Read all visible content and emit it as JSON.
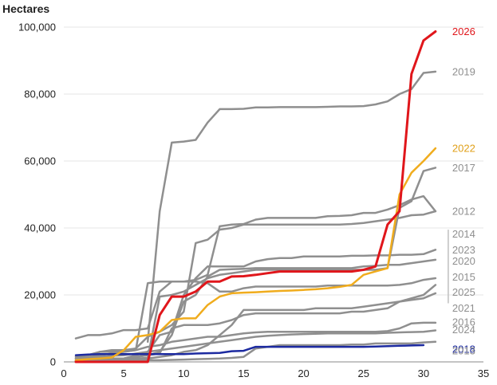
{
  "chart_data": {
    "type": "line",
    "ylabel": "Hectares",
    "xlabel": "",
    "xlim": [
      0,
      35
    ],
    "ylim": [
      0,
      100000
    ],
    "xticks": [
      "0",
      "5",
      "10",
      "15",
      "20",
      "25",
      "30",
      "35"
    ],
    "yticks": [
      "0",
      "20,000",
      "40,000",
      "60,000",
      "80,000",
      "100,000"
    ],
    "grid": "horizontal",
    "colors": {
      "highlight": "#e0161b",
      "accent": "#f0ac1d",
      "reference": "#1c2aa0",
      "muted": "#8f8f8f"
    },
    "series": [
      {
        "name": "2019",
        "color": "#8f8f8f",
        "x": [
          7,
          8,
          9,
          10,
          11,
          12,
          13,
          14,
          15,
          16,
          17,
          18,
          19,
          20,
          21,
          22,
          23,
          24,
          25,
          26,
          27,
          28,
          29,
          30,
          31
        ],
        "y": [
          6000,
          45000,
          65500,
          65800,
          66300,
          71500,
          75500,
          75500,
          75600,
          76000,
          76000,
          76100,
          76100,
          76100,
          76100,
          76200,
          76300,
          76300,
          76400,
          76900,
          77800,
          80000,
          81500,
          86300,
          86700
        ]
      },
      {
        "name": "2022",
        "color": "#f0ac1d",
        "x": [
          1,
          2,
          3,
          4,
          5,
          6,
          7,
          8,
          9,
          10,
          11,
          12,
          13,
          14,
          15,
          16,
          17,
          18,
          19,
          20,
          21,
          22,
          23,
          24,
          25,
          26,
          27,
          28,
          29,
          30,
          31
        ],
        "y": [
          500,
          800,
          1000,
          1300,
          3500,
          7500,
          8000,
          9000,
          12500,
          13000,
          13000,
          17000,
          19500,
          20500,
          20700,
          20800,
          21000,
          21200,
          21300,
          21500,
          21700,
          22000,
          22400,
          23000,
          26000,
          27000,
          28000,
          50000,
          56500,
          60000,
          63800
        ]
      },
      {
        "name": "2017",
        "color": "#8f8f8f",
        "x": [
          1,
          2,
          3,
          4,
          5,
          6,
          7,
          8,
          9,
          10,
          11,
          12,
          13,
          14,
          15,
          16,
          17,
          18,
          19,
          20,
          21,
          22,
          23,
          24,
          25,
          26,
          27,
          28,
          29,
          30,
          31
        ],
        "y": [
          1000,
          1000,
          1000,
          1000,
          1000,
          1000,
          1200,
          19500,
          20000,
          21000,
          23000,
          25000,
          26000,
          26500,
          27000,
          27500,
          27500,
          27500,
          27500,
          27500,
          27500,
          27500,
          27500,
          27500,
          27500,
          27500,
          28000,
          46000,
          48000,
          57000,
          58000
        ]
      },
      {
        "name": "2012",
        "color": "#8f8f8f",
        "x": [
          1,
          2,
          3,
          4,
          5,
          6,
          7,
          8,
          9,
          10,
          11,
          12,
          13,
          14,
          15,
          16,
          17,
          18,
          19,
          20,
          21,
          22,
          23,
          24,
          25,
          26,
          27,
          28,
          29,
          30,
          31
        ],
        "y": [
          7000,
          8000,
          8000,
          8500,
          9500,
          9500,
          10000,
          21000,
          24000,
          24000,
          24500,
          26000,
          40500,
          41000,
          41200,
          42500,
          43000,
          43000,
          43000,
          43000,
          43000,
          43500,
          43600,
          43800,
          44500,
          44500,
          45500,
          46800,
          48500,
          49500,
          45000
        ]
      },
      {
        "name": "2014",
        "color": "#8f8f8f",
        "x": [
          1,
          2,
          3,
          4,
          5,
          6,
          7,
          8,
          9,
          10,
          11,
          12,
          13,
          14,
          15,
          16,
          17,
          18,
          19,
          20,
          21,
          22,
          23,
          24,
          25,
          26,
          27,
          28,
          29,
          30,
          31
        ],
        "y": [
          1500,
          2000,
          3000,
          3500,
          3500,
          4000,
          7500,
          9000,
          11000,
          15000,
          35500,
          36500,
          39500,
          40000,
          41000,
          41000,
          41000,
          41000,
          41000,
          41000,
          41000,
          41000,
          41000,
          41200,
          41500,
          42000,
          42500,
          43000,
          43800,
          44000,
          45000
        ]
      },
      {
        "name": "2023",
        "color": "#8f8f8f",
        "x": [
          1,
          2,
          3,
          4,
          5,
          6,
          7,
          8,
          9,
          10,
          11,
          12,
          13,
          14,
          15,
          16,
          17,
          18,
          19,
          20,
          21,
          22,
          23,
          24,
          25,
          26,
          27,
          28,
          29,
          30,
          31
        ],
        "y": [
          300,
          500,
          800,
          1000,
          1000,
          2000,
          3000,
          8000,
          9000,
          20000,
          25000,
          28500,
          28500,
          28500,
          28500,
          30000,
          30700,
          31000,
          31000,
          31500,
          31500,
          31500,
          31500,
          31700,
          31700,
          31800,
          31800,
          32000,
          32000,
          32200,
          33500
        ]
      },
      {
        "name": "2020",
        "color": "#8f8f8f",
        "x": [
          1,
          2,
          3,
          4,
          5,
          6,
          7,
          8,
          9,
          10,
          11,
          12,
          13,
          14,
          15,
          16,
          17,
          18,
          19,
          20,
          21,
          22,
          23,
          24,
          25,
          26,
          27,
          28,
          29,
          30,
          31
        ],
        "y": [
          300,
          500,
          800,
          1000,
          1000,
          1500,
          2000,
          3000,
          8000,
          18000,
          20000,
          25500,
          27500,
          27700,
          27800,
          28000,
          28000,
          28000,
          28000,
          28000,
          28000,
          28000,
          28000,
          28000,
          28500,
          28700,
          29000,
          29000,
          29500,
          30000,
          30500
        ]
      },
      {
        "name": "2015",
        "color": "#8f8f8f",
        "x": [
          1,
          2,
          3,
          4,
          5,
          6,
          7,
          8,
          9,
          10,
          11,
          12,
          13,
          14,
          15,
          16,
          17,
          18,
          19,
          20,
          21,
          22,
          23,
          24,
          25,
          26,
          27,
          28,
          29,
          30,
          31
        ],
        "y": [
          1500,
          2000,
          3000,
          3000,
          3000,
          3500,
          23500,
          24000,
          24000,
          24000,
          24000,
          23500,
          21000,
          21000,
          22000,
          22500,
          22500,
          22500,
          22500,
          22500,
          22500,
          22800,
          22800,
          22800,
          22800,
          22800,
          22800,
          23000,
          23500,
          24500,
          25000
        ]
      },
      {
        "name": "2025",
        "color": "#8f8f8f",
        "x": [
          1,
          2,
          3,
          4,
          5,
          6,
          7,
          8,
          9,
          10,
          11,
          12,
          13,
          14,
          15,
          16,
          17,
          18,
          19,
          20,
          21,
          22,
          23,
          24,
          25,
          26,
          27,
          28,
          29,
          30,
          31
        ],
        "y": [
          1000,
          1000,
          1000,
          1000,
          1000,
          1500,
          2000,
          2500,
          10000,
          11000,
          11000,
          11000,
          11500,
          12500,
          14000,
          14500,
          14500,
          14500,
          14500,
          14500,
          14500,
          14500,
          14500,
          15000,
          15000,
          15500,
          16000,
          18000,
          19000,
          20000,
          23000
        ]
      },
      {
        "name": "2021",
        "color": "#8f8f8f",
        "x": [
          1,
          2,
          3,
          4,
          5,
          6,
          7,
          8,
          9,
          10,
          11,
          12,
          13,
          14,
          15,
          16,
          17,
          18,
          19,
          20,
          21,
          22,
          23,
          24,
          25,
          26,
          27,
          28,
          29,
          30,
          31
        ],
        "y": [
          300,
          500,
          500,
          500,
          500,
          500,
          1000,
          1500,
          2000,
          3000,
          3500,
          5000,
          8000,
          11000,
          15500,
          15500,
          15500,
          15500,
          15500,
          15500,
          16000,
          16000,
          16000,
          16000,
          16500,
          17000,
          17500,
          18000,
          18500,
          19000,
          20500
        ]
      },
      {
        "name": "2016",
        "color": "#8f8f8f",
        "x": [
          1,
          2,
          3,
          4,
          5,
          6,
          7,
          8,
          9,
          10,
          11,
          12,
          13,
          14,
          15,
          16,
          17,
          18,
          19,
          20,
          21,
          22,
          23,
          24,
          25,
          26,
          27,
          28,
          29,
          30,
          31
        ],
        "y": [
          1000,
          1500,
          2000,
          2500,
          3000,
          3500,
          4500,
          5000,
          6000,
          6500,
          7000,
          7500,
          7500,
          8000,
          8500,
          8800,
          9000,
          9000,
          9000,
          9000,
          9000,
          9000,
          9000,
          9000,
          9000,
          9000,
          9200,
          10000,
          11500,
          11700,
          11700
        ]
      },
      {
        "name": "2024",
        "color": "#8f8f8f",
        "x": [
          1,
          2,
          3,
          4,
          5,
          6,
          7,
          8,
          9,
          10,
          11,
          12,
          13,
          14,
          15,
          16,
          17,
          18,
          19,
          20,
          21,
          22,
          23,
          24,
          25,
          26,
          27,
          28,
          29,
          30,
          31
        ],
        "y": [
          500,
          1000,
          1500,
          1800,
          2000,
          2500,
          3000,
          3500,
          4000,
          4500,
          5000,
          5500,
          6000,
          6500,
          7000,
          7500,
          7800,
          8000,
          8200,
          8300,
          8400,
          8500,
          8500,
          8500,
          8500,
          8500,
          8700,
          8800,
          8900,
          9000,
          9400
        ]
      },
      {
        "name": "2018",
        "color": "#1c2aa0",
        "x": [
          1,
          2,
          3,
          4,
          5,
          6,
          7,
          8,
          9,
          10,
          11,
          12,
          13,
          14,
          15,
          16,
          17,
          18,
          19,
          20,
          21,
          22,
          23,
          24,
          25,
          26,
          27,
          28,
          29,
          30
        ],
        "y": [
          2000,
          2200,
          2300,
          2300,
          2300,
          2300,
          2300,
          2300,
          2300,
          2300,
          2500,
          2600,
          2700,
          3200,
          3300,
          4500,
          4500,
          4500,
          4500,
          4500,
          4500,
          4500,
          4500,
          4500,
          4500,
          4600,
          4700,
          4800,
          4900,
          5000
        ]
      },
      {
        "name": "2013",
        "color": "#8f8f8f",
        "x": [
          1,
          2,
          3,
          4,
          5,
          6,
          7,
          8,
          9,
          10,
          11,
          12,
          13,
          14,
          15,
          16,
          17,
          18,
          19,
          20,
          21,
          22,
          23,
          24,
          25,
          26,
          27,
          28,
          29,
          30,
          31
        ],
        "y": [
          200,
          200,
          300,
          300,
          300,
          400,
          500,
          500,
          600,
          700,
          800,
          900,
          1000,
          1200,
          1500,
          4000,
          4500,
          5000,
          5000,
          5000,
          5000,
          5000,
          5000,
          5200,
          5200,
          5500,
          5500,
          5500,
          5500,
          5800,
          6000
        ]
      },
      {
        "name": "2026",
        "color": "#e0161b",
        "x": [
          1,
          2,
          3,
          4,
          5,
          6,
          7,
          8,
          9,
          10,
          11,
          12,
          13,
          14,
          15,
          16,
          17,
          18,
          19,
          20,
          21,
          22,
          23,
          24,
          25,
          26,
          27,
          28,
          29,
          30,
          31
        ],
        "y": [
          0,
          0,
          0,
          0,
          0,
          0,
          0,
          14000,
          19500,
          19500,
          21000,
          24000,
          24000,
          25500,
          25600,
          26000,
          26500,
          27000,
          27000,
          27000,
          27000,
          27000,
          27000,
          27000,
          27500,
          28500,
          41000,
          45000,
          86000,
          96000,
          98700
        ]
      }
    ],
    "bracket_labels": [
      "2014",
      "2023",
      "2020",
      "2015",
      "2025",
      "2021"
    ]
  }
}
